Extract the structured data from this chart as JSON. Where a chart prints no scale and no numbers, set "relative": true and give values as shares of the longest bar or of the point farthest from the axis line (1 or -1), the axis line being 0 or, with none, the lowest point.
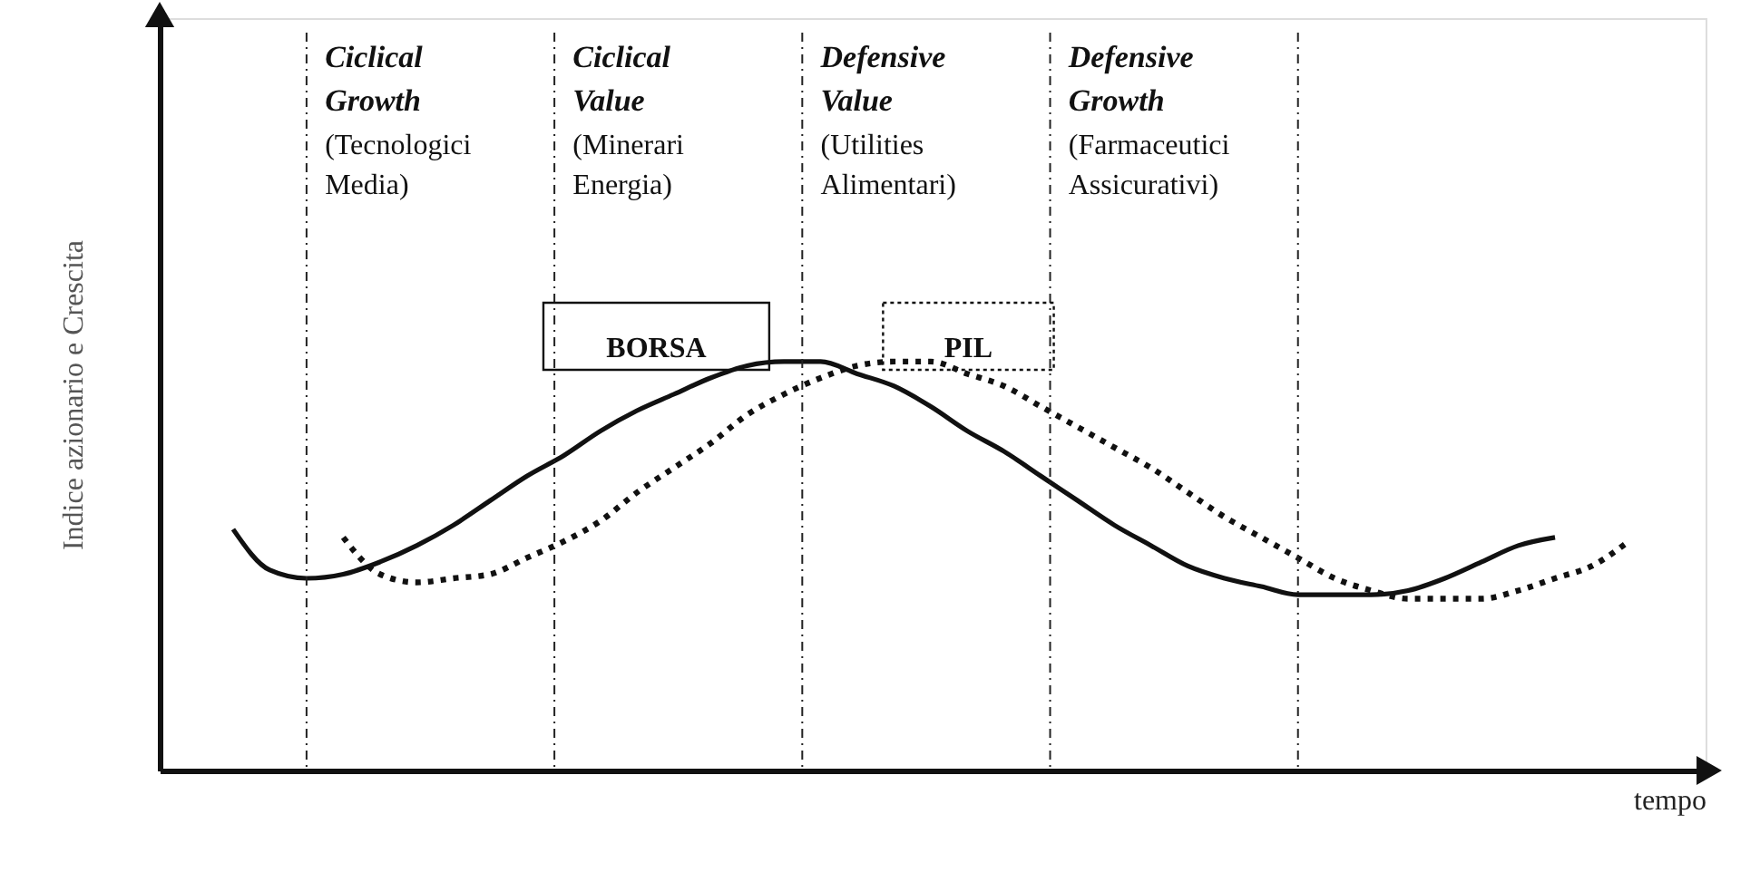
{
  "chart_data": {
    "type": "line",
    "relative": true,
    "xlabel": "tempo",
    "ylabel": "Indice azionario e Crescita",
    "tick_labels": false,
    "grid": false,
    "marker": "none",
    "categories": [
      null,
      null,
      null,
      null,
      null,
      null,
      null,
      null,
      null,
      null,
      null,
      null,
      null,
      null,
      null,
      null,
      null,
      null,
      null,
      null,
      null,
      null,
      null,
      null,
      null,
      null,
      null,
      null,
      null,
      null,
      null,
      null,
      null,
      null,
      null,
      null,
      null,
      null,
      null
    ],
    "series": [
      {
        "name": "BORSA",
        "color": "#111111",
        "line_style": "solid",
        "values": [
          0.59,
          0.49,
          0.47,
          0.48,
          0.51,
          0.55,
          0.6,
          0.66,
          0.72,
          0.77,
          0.83,
          0.88,
          0.92,
          0.96,
          0.99,
          1,
          1,
          0.97,
          0.94,
          0.89,
          0.83,
          0.78,
          0.72,
          0.66,
          0.6,
          0.55,
          0.5,
          0.47,
          0.45,
          0.43,
          0.43,
          0.43,
          0.44,
          0.47,
          0.51,
          0.55,
          0.57,
          null,
          null
        ]
      },
      {
        "name": "PIL",
        "color": "#111111",
        "line_style": "dotted",
        "values": [
          null,
          null,
          null,
          0.57,
          0.48,
          0.46,
          0.47,
          0.48,
          0.52,
          0.56,
          0.61,
          0.68,
          0.74,
          0.8,
          0.87,
          0.92,
          0.96,
          0.99,
          1,
          1,
          0.97,
          0.94,
          0.89,
          0.84,
          0.79,
          0.74,
          0.68,
          0.62,
          0.57,
          0.52,
          0.47,
          0.44,
          0.42,
          0.42,
          0.42,
          0.44,
          0.47,
          0.5,
          0.56
        ]
      }
    ],
    "annotations": [
      "Ciclical Growth (Tecnologici Media)",
      "Ciclical Value (Minerari Energia)",
      "Defensive Value (Utilities Alimentari)",
      "Defensive Growth (Farmaceutici Assicurativi)"
    ]
  }
}
